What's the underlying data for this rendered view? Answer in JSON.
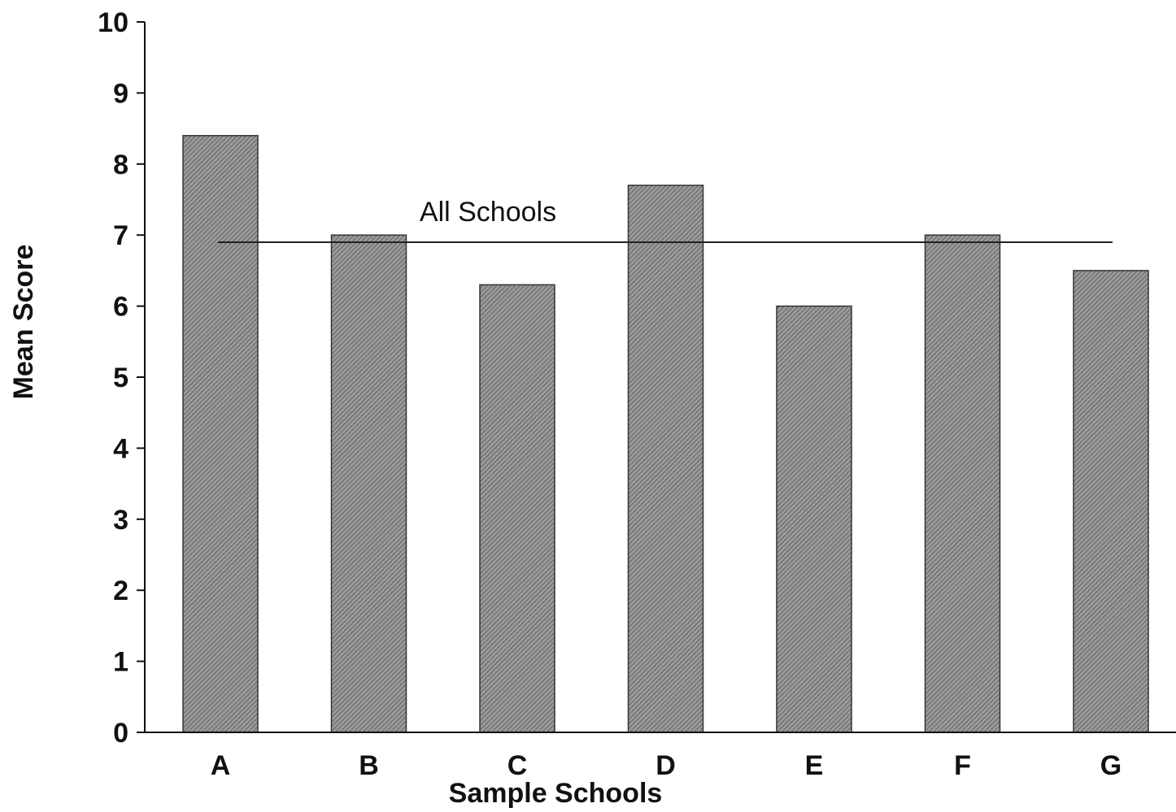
{
  "chart_data": {
    "type": "bar",
    "categories": [
      "A",
      "B",
      "C",
      "D",
      "E",
      "F",
      "G"
    ],
    "values": [
      8.4,
      7.0,
      6.3,
      7.7,
      6.0,
      7.0,
      6.5
    ],
    "xlabel": "Sample Schools",
    "ylabel": "Mean Score",
    "ylim": [
      0,
      10
    ],
    "yticks": [
      0,
      1,
      2,
      3,
      4,
      5,
      6,
      7,
      8,
      9,
      10
    ],
    "grid": false,
    "reference_line": {
      "label": "All Schools",
      "value": 6.9
    },
    "colors": {
      "bar_fill": "#9a9a9a",
      "bar_hatch": "#555555",
      "axis": "#111111"
    }
  }
}
